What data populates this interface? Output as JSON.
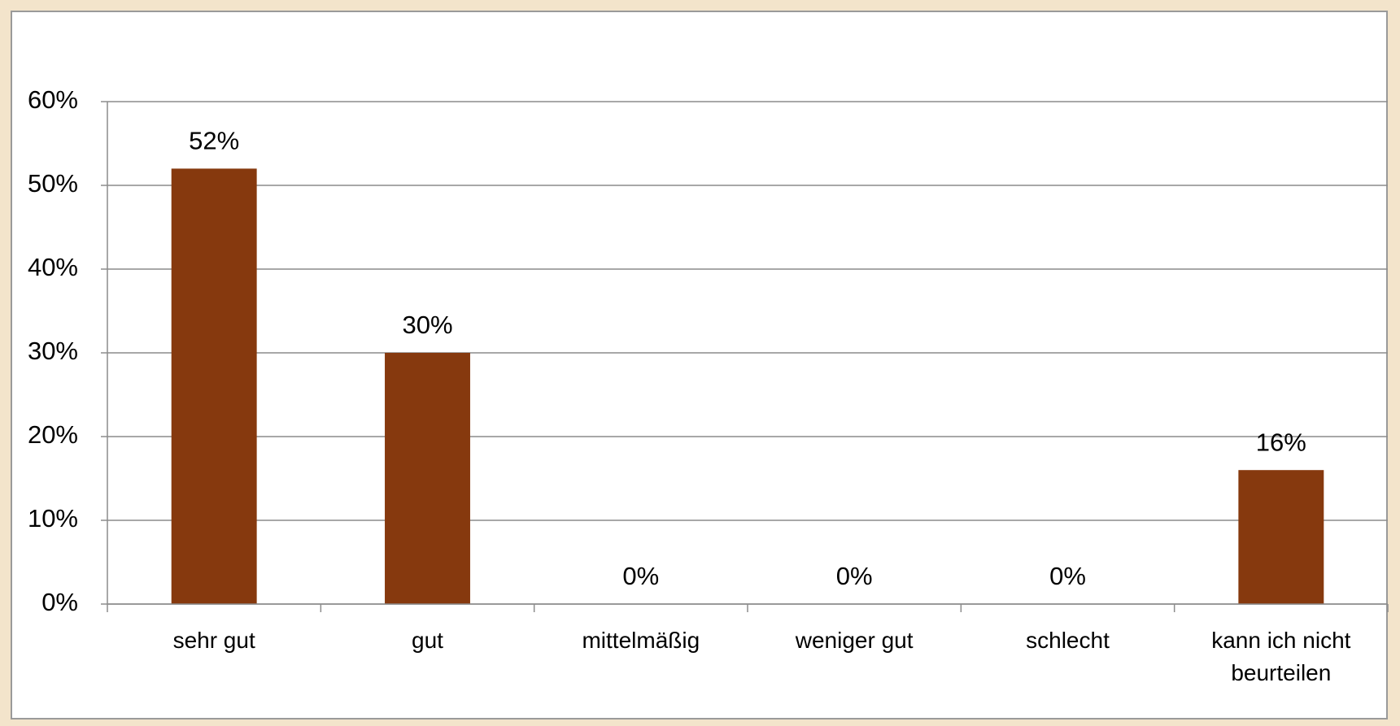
{
  "chart_data": {
    "type": "bar",
    "categories": [
      "sehr gut",
      "gut",
      "mittelmäßig",
      "weniger gut",
      "schlecht",
      "kann ich nicht beurteilen"
    ],
    "values": [
      52,
      30,
      0,
      0,
      0,
      16
    ],
    "value_labels": [
      "52%",
      "30%",
      "0%",
      "0%",
      "0%",
      "16%"
    ],
    "color": "#86390e",
    "ylim": [
      0,
      60
    ],
    "yticks": [
      {
        "value": 0,
        "label": "0%"
      },
      {
        "value": 10,
        "label": "10%"
      },
      {
        "value": 20,
        "label": "20%"
      },
      {
        "value": 30,
        "label": "30%"
      },
      {
        "value": 40,
        "label": "40%"
      },
      {
        "value": 50,
        "label": "50%"
      },
      {
        "value": 60,
        "label": "60%"
      }
    ],
    "grid": true
  }
}
